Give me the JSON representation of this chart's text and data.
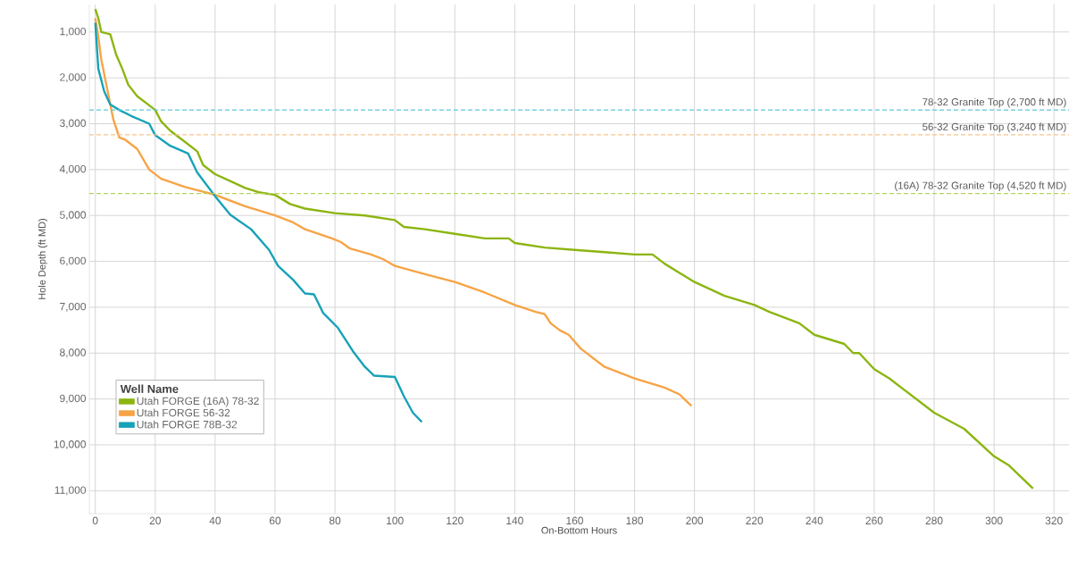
{
  "chart_data": {
    "type": "line",
    "xlabel": "On-Bottom Hours",
    "ylabel": "Hole Depth (ft MD)",
    "legend_title": "Well Name",
    "xlim": [
      -2,
      325
    ],
    "ylim": [
      11500,
      400
    ],
    "xticks": [
      0,
      20,
      40,
      60,
      80,
      100,
      120,
      140,
      160,
      180,
      200,
      220,
      240,
      260,
      280,
      300,
      320
    ],
    "yticks": [
      {
        "value": 1000,
        "label": "1,000"
      },
      {
        "value": 2000,
        "label": "2,000"
      },
      {
        "value": 3000,
        "label": "3,000"
      },
      {
        "value": 4000,
        "label": "4,000"
      },
      {
        "value": 5000,
        "label": "5,000"
      },
      {
        "value": 6000,
        "label": "6,000"
      },
      {
        "value": 7000,
        "label": "7,000"
      },
      {
        "value": 8000,
        "label": "8,000"
      },
      {
        "value": 9000,
        "label": "9,000"
      },
      {
        "value": 10000,
        "label": "10,000"
      },
      {
        "value": 11000,
        "label": "11,000"
      }
    ],
    "grid": true,
    "legend": "bottom left",
    "marker": "none",
    "line_style": "solid",
    "series": [
      {
        "name": "Utah FORGE (16A) 78-32",
        "color": "#8cb511",
        "x": [
          0,
          1,
          2,
          5,
          7,
          9,
          11,
          14,
          17,
          20,
          22,
          25,
          30,
          34,
          36,
          40,
          45,
          50,
          55,
          60,
          65,
          70,
          80,
          90,
          100,
          103,
          110,
          120,
          130,
          138,
          140,
          150,
          160,
          170,
          180,
          186,
          190,
          195,
          200,
          205,
          210,
          220,
          225,
          235,
          240,
          250,
          253,
          255,
          260,
          265,
          270,
          280,
          290,
          300,
          305,
          313
        ],
        "values": [
          500,
          700,
          1000,
          1050,
          1500,
          1800,
          2150,
          2400,
          2550,
          2700,
          2950,
          3150,
          3400,
          3600,
          3900,
          4100,
          4250,
          4400,
          4500,
          4550,
          4750,
          4850,
          4950,
          5000,
          5100,
          5250,
          5300,
          5400,
          5500,
          5500,
          5600,
          5700,
          5750,
          5800,
          5850,
          5850,
          6050,
          6250,
          6450,
          6600,
          6750,
          6950,
          7100,
          7350,
          7600,
          7800,
          8000,
          8000,
          8350,
          8550,
          8800,
          9300,
          9650,
          10250,
          10450,
          10950
        ]
      },
      {
        "name": "Utah FORGE 56-32",
        "color": "#f7a446",
        "x": [
          0,
          1,
          2,
          4,
          6,
          8,
          10,
          14,
          18,
          22,
          30,
          40,
          50,
          60,
          66,
          70,
          79,
          82,
          85,
          92,
          96,
          100,
          110,
          120,
          130,
          140,
          147,
          150,
          152,
          155,
          158,
          162,
          170,
          180,
          190,
          195,
          199
        ],
        "values": [
          700,
          1100,
          1600,
          2250,
          2900,
          3300,
          3350,
          3550,
          4000,
          4200,
          4380,
          4550,
          4800,
          5000,
          5150,
          5300,
          5500,
          5580,
          5720,
          5850,
          5950,
          6100,
          6280,
          6450,
          6680,
          6950,
          7100,
          7150,
          7350,
          7500,
          7600,
          7900,
          8300,
          8550,
          8750,
          8900,
          9150
        ]
      },
      {
        "name": "Utah FORGE 78B-32",
        "color": "#17a2b8",
        "x": [
          0,
          0.5,
          1,
          3,
          5,
          8,
          12,
          18,
          20,
          25,
          31,
          34,
          40,
          45,
          52,
          58,
          61,
          66,
          70,
          73,
          76,
          81,
          86,
          90,
          93,
          100,
          103,
          106,
          109
        ],
        "values": [
          800,
          1300,
          1800,
          2300,
          2580,
          2700,
          2830,
          3000,
          3250,
          3480,
          3650,
          4060,
          4580,
          4980,
          5300,
          5750,
          6100,
          6400,
          6700,
          6720,
          7120,
          7450,
          7960,
          8300,
          8490,
          8520,
          8940,
          9300,
          9500
        ]
      }
    ],
    "ref_lines": [
      {
        "axis": "y",
        "value": 2700,
        "label": "78-32 Granite Top (2,700 ft MD)",
        "color": "#5cc8dc",
        "line_style": "dashed"
      },
      {
        "axis": "y",
        "value": 3240,
        "label": "56-32 Granite Top (3,240 ft MD)",
        "color": "#f7c48c",
        "line_style": "dashed"
      },
      {
        "axis": "y",
        "value": 4520,
        "label": "(16A) 78-32 Granite Top (4,520 ft MD)",
        "color": "#b5d35a",
        "line_style": "dashed"
      }
    ]
  }
}
